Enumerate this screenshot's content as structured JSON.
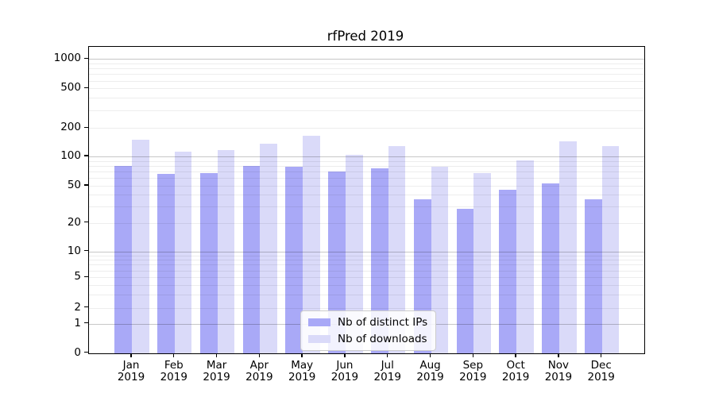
{
  "chart_data": {
    "type": "bar",
    "title": "rfPred 2019",
    "categories": [
      "Jan",
      "Feb",
      "Mar",
      "Apr",
      "May",
      "Jun",
      "Jul",
      "Aug",
      "Sep",
      "Oct",
      "Nov",
      "Dec"
    ],
    "category_year": "2019",
    "series": [
      {
        "name": "Nb of distinct IPs",
        "color": "#a9a9f7",
        "values": [
          80,
          66,
          68,
          80,
          78,
          70,
          76,
          36,
          28,
          45,
          53,
          36
        ]
      },
      {
        "name": "Nb of downloads",
        "color": "#dadaf9",
        "values": [
          150,
          112,
          116,
          136,
          165,
          105,
          128,
          78,
          67,
          91,
          144,
          129
        ]
      }
    ],
    "y_axis": {
      "scale": "symlog-like",
      "ticks": [
        0,
        1,
        2,
        5,
        10,
        20,
        50,
        100,
        200,
        500,
        1000
      ],
      "range_top_approx": 1350
    },
    "x_axis": {
      "tick_labels_two_lines": true
    },
    "grid": {
      "major_values": [
        1,
        10,
        100,
        1000
      ],
      "minor_values": [
        2,
        3,
        4,
        5,
        6,
        7,
        8,
        9,
        20,
        30,
        40,
        50,
        60,
        70,
        80,
        90,
        200,
        300,
        400,
        500,
        600,
        700,
        800,
        900
      ],
      "major_color": "rgba(0,0,0,0.22)",
      "minor_color": "rgba(0,0,0,0.07)"
    },
    "legend": {
      "position": "lower center-left inside plot"
    },
    "scale_anchors": [
      [
        0,
        0
      ],
      [
        1,
        0.0955
      ],
      [
        2,
        0.1473
      ],
      [
        5,
        0.2469
      ],
      [
        10,
        0.3315
      ],
      [
        20,
        0.4254
      ],
      [
        50,
        0.5461
      ],
      [
        100,
        0.642
      ],
      [
        200,
        0.7346
      ],
      [
        500,
        0.8643
      ],
      [
        1000,
        0.9604
      ]
    ]
  }
}
